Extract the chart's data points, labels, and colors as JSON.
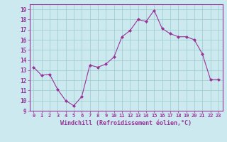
{
  "x": [
    0,
    1,
    2,
    3,
    4,
    5,
    6,
    7,
    8,
    9,
    10,
    11,
    12,
    13,
    14,
    15,
    16,
    17,
    18,
    19,
    20,
    21,
    22,
    23
  ],
  "y": [
    13.3,
    12.5,
    12.6,
    11.1,
    10.0,
    9.5,
    10.4,
    13.5,
    13.3,
    13.6,
    14.3,
    16.3,
    16.9,
    18.0,
    17.8,
    18.9,
    17.1,
    16.6,
    16.3,
    16.3,
    16.0,
    14.6,
    12.1,
    12.1
  ],
  "line_color": "#993399",
  "marker": "D",
  "marker_size": 2.0,
  "bg_color": "#cce9f0",
  "grid_color": "#99cccc",
  "xlabel": "Windchill (Refroidissement éolien,°C)",
  "yticks": [
    9,
    10,
    11,
    12,
    13,
    14,
    15,
    16,
    17,
    18,
    19
  ],
  "xlim": [
    -0.5,
    23.5
  ],
  "ylim": [
    9,
    19.5
  ],
  "xtick_fontsize": 5.0,
  "ytick_fontsize": 5.5,
  "xlabel_fontsize": 6.0
}
